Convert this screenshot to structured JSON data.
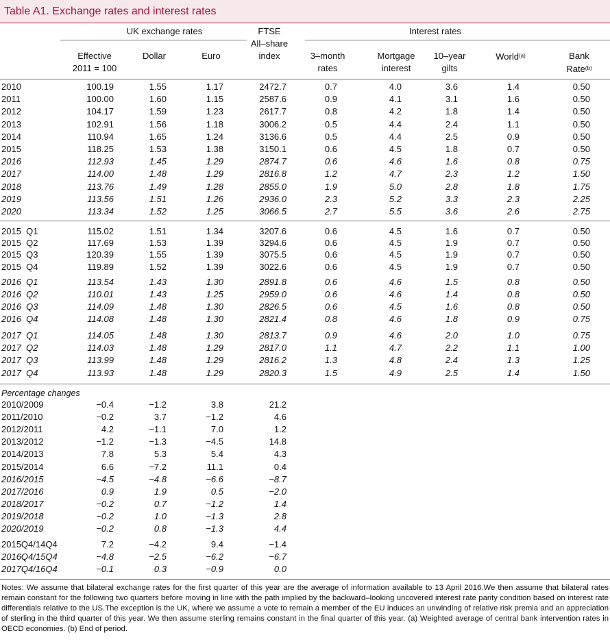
{
  "title": "Table A1. Exchange rates and interest rates",
  "header_groups": [
    "UK exchange rates",
    "Interest rates"
  ],
  "columns": [
    {
      "label": "Effective\n2011 = 100"
    },
    {
      "label": "Dollar"
    },
    {
      "label": "Euro"
    },
    {
      "label": "FTSE\nAll–share\nindex"
    },
    {
      "label": "3–month\nrates"
    },
    {
      "label": "Mortgage\ninterest"
    },
    {
      "label": "10–year\ngilts"
    },
    {
      "label": "World",
      "note": "(a)"
    },
    {
      "label": "Bank\nRate",
      "note": "(b)"
    }
  ],
  "sections": [
    {
      "blocks": [
        {
          "rows": [
            {
              "label": "2010",
              "cells": [
                "100.19",
                "1.55",
                "1.17",
                "2472.7",
                "0.7",
                "4.0",
                "3.6",
                "1.4",
                "0.50"
              ]
            },
            {
              "label": "2011",
              "cells": [
                "100.00",
                "1.60",
                "1.15",
                "2587.6",
                "0.9",
                "4.1",
                "3.1",
                "1.6",
                "0.50"
              ]
            },
            {
              "label": "2012",
              "cells": [
                "104.17",
                "1.59",
                "1.23",
                "2617.7",
                "0.8",
                "4.2",
                "1.8",
                "1.4",
                "0.50"
              ]
            },
            {
              "label": "2013",
              "cells": [
                "102.91",
                "1.56",
                "1.18",
                "3006.2",
                "0.5",
                "4.4",
                "2.4",
                "1.1",
                "0.50"
              ]
            },
            {
              "label": "2014",
              "cells": [
                "110.94",
                "1.65",
                "1.24",
                "3136.6",
                "0.5",
                "4.4",
                "2.5",
                "0.9",
                "0.50"
              ]
            },
            {
              "label": "2015",
              "cells": [
                "118.25",
                "1.53",
                "1.38",
                "3150.1",
                "0.6",
                "4.5",
                "1.8",
                "0.7",
                "0.50"
              ]
            },
            {
              "label": "2016",
              "italic": true,
              "cells": [
                "112.93",
                "1.45",
                "1.29",
                "2874.7",
                "0.6",
                "4.6",
                "1.6",
                "0.8",
                "0.75"
              ]
            },
            {
              "label": "2017",
              "italic": true,
              "cells": [
                "114.00",
                "1.48",
                "1.29",
                "2816.8",
                "1.2",
                "4.7",
                "2.3",
                "1.2",
                "1.50"
              ]
            },
            {
              "label": "2018",
              "italic": true,
              "cells": [
                "113.76",
                "1.49",
                "1.28",
                "2855.0",
                "1.9",
                "5.0",
                "2.8",
                "1.8",
                "1.75"
              ]
            },
            {
              "label": "2019",
              "italic": true,
              "cells": [
                "113.56",
                "1.51",
                "1.26",
                "2936.0",
                "2.3",
                "5.2",
                "3.3",
                "2.3",
                "2.25"
              ]
            },
            {
              "label": "2020",
              "italic": true,
              "cells": [
                "113.34",
                "1.52",
                "1.25",
                "3066.5",
                "2.7",
                "5.5",
                "3.6",
                "2.6",
                "2.75"
              ]
            }
          ]
        }
      ]
    },
    {
      "blocks": [
        {
          "rows": [
            {
              "label": "2015  Q1",
              "cells": [
                "115.02",
                "1.51",
                "1.34",
                "3207.6",
                "0.6",
                "4.5",
                "1.6",
                "0.7",
                "0.50"
              ]
            },
            {
              "label": "2015  Q2",
              "cells": [
                "117.69",
                "1.53",
                "1.39",
                "3294.6",
                "0.6",
                "4.5",
                "1.9",
                "0.7",
                "0.50"
              ]
            },
            {
              "label": "2015  Q3",
              "cells": [
                "120.39",
                "1.55",
                "1.39",
                "3075.5",
                "0.6",
                "4.5",
                "1.9",
                "0.7",
                "0.50"
              ]
            },
            {
              "label": "2015  Q4",
              "cells": [
                "119.89",
                "1.52",
                "1.39",
                "3022.6",
                "0.6",
                "4.5",
                "1.9",
                "0.7",
                "0.50"
              ]
            }
          ]
        },
        {
          "rows": [
            {
              "label": "2016  Q1",
              "italic": true,
              "cells": [
                "113.54",
                "1.43",
                "1.30",
                "2891.8",
                "0.6",
                "4.6",
                "1.5",
                "0.8",
                "0.50"
              ]
            },
            {
              "label": "2016  Q2",
              "italic": true,
              "cells": [
                "110.01",
                "1.43",
                "1.25",
                "2959.0",
                "0.6",
                "4.6",
                "1.4",
                "0.8",
                "0.50"
              ]
            },
            {
              "label": "2016  Q3",
              "italic": true,
              "cells": [
                "114.09",
                "1.48",
                "1.30",
                "2826.5",
                "0.6",
                "4.5",
                "1.6",
                "0.8",
                "0.50"
              ]
            },
            {
              "label": "2016  Q4",
              "italic": true,
              "cells": [
                "114.08",
                "1.48",
                "1.30",
                "2821.4",
                "0.8",
                "4.6",
                "1.8",
                "0.9",
                "0.75"
              ]
            }
          ]
        },
        {
          "rows": [
            {
              "label": "2017  Q1",
              "italic": true,
              "cells": [
                "114.05",
                "1.48",
                "1.30",
                "2813.7",
                "0.9",
                "4.6",
                "2.0",
                "1.0",
                "0.75"
              ]
            },
            {
              "label": "2017  Q2",
              "italic": true,
              "cells": [
                "114.03",
                "1.48",
                "1.29",
                "2817.0",
                "1.1",
                "4.7",
                "2.2",
                "1.1",
                "1.00"
              ]
            },
            {
              "label": "2017  Q3",
              "italic": true,
              "cells": [
                "113.99",
                "1.48",
                "1.29",
                "2816.2",
                "1.3",
                "4.8",
                "2.4",
                "1.3",
                "1.25"
              ]
            },
            {
              "label": "2017  Q4",
              "italic": true,
              "cells": [
                "113.93",
                "1.48",
                "1.29",
                "2820.3",
                "1.5",
                "4.9",
                "2.5",
                "1.4",
                "1.50"
              ]
            }
          ]
        }
      ]
    },
    {
      "heading": "Percentage changes",
      "blocks": [
        {
          "rows": [
            {
              "label": "2010/2009",
              "cells": [
                "−0.4",
                "−1.2",
                "3.8",
                "21.2"
              ]
            },
            {
              "label": "2011/2010",
              "cells": [
                "−0.2",
                "3.7",
                "−1.2",
                "4.6"
              ]
            },
            {
              "label": "2012/2011",
              "cells": [
                "4.2",
                "−1.1",
                "7.0",
                "1.2"
              ]
            },
            {
              "label": "2013/2012",
              "cells": [
                "−1.2",
                "−1.3",
                "−4.5",
                "14.8"
              ]
            },
            {
              "label": "2014/2013",
              "cells": [
                "7.8",
                "5.3",
                "5.4",
                "4.3"
              ]
            },
            {
              "label": "2015/2014",
              "cells": [
                "6.6",
                "−7.2",
                "11.1",
                "0.4"
              ]
            },
            {
              "label": "2016/2015",
              "italic": true,
              "cells": [
                "−4.5",
                "−4.8",
                "−6.6",
                "−8.7"
              ]
            },
            {
              "label": "2017/2016",
              "italic": true,
              "cells": [
                "0.9",
                "1.9",
                "0.5",
                "−2.0"
              ]
            },
            {
              "label": "2018/2017",
              "italic": true,
              "cells": [
                "−0.2",
                "0.7",
                "−1.2",
                "1.4"
              ]
            },
            {
              "label": "2019/2018",
              "italic": true,
              "cells": [
                "−0.2",
                "1.0",
                "−1.3",
                "2.8"
              ]
            },
            {
              "label": "2020/2019",
              "italic": true,
              "cells": [
                "−0.2",
                "0.8",
                "−1.3",
                "4.4"
              ]
            }
          ]
        },
        {
          "rows": [
            {
              "label": "2015Q4/14Q4",
              "cells": [
                "7.2",
                "−4.2",
                "9.4",
                "−1.4"
              ]
            },
            {
              "label": "2016Q4/15Q4",
              "italic": true,
              "cells": [
                "−4.8",
                "−2.5",
                "−6.2",
                "−6.7"
              ]
            },
            {
              "label": "2017Q4/16Q4",
              "italic": true,
              "cells": [
                "−0.1",
                "0.3",
                "−0.9",
                "0.0"
              ]
            }
          ]
        }
      ]
    }
  ],
  "notes": "Notes: We assume that bilateral exchange rates for the first quarter of this year are the average of information available to 13 April 2016.We then assume that bilateral rates remain constant for the following two quarters before moving in line with the path implied by the backward–looking uncovered interest rate parity condition based on interest rate differentials relative to the US.The exception is the UK, where we assume a vote to remain a member of the EU induces an unwinding of relative risk premia and an appreciation of sterling in the third quarter of this year. We then assume sterling remains constant in the final quarter of this year. (a) Weighted average of central bank intervention rates in OECD economies. (b) End of period."
}
